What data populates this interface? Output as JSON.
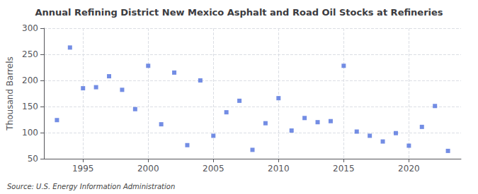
{
  "chart_data": {
    "type": "scatter",
    "title": "Annual Refining District New Mexico Asphalt and Road Oil Stocks at Refineries",
    "ylabel": "Thousand Barrels",
    "source": "Source: U.S. Energy Information Administration",
    "x": [
      1993,
      1994,
      1995,
      1996,
      1997,
      1998,
      1999,
      2000,
      2001,
      2002,
      2003,
      2004,
      2005,
      2006,
      2007,
      2008,
      2009,
      2010,
      2011,
      2012,
      2013,
      2014,
      2015,
      2016,
      2017,
      2018,
      2019,
      2020,
      2021,
      2022,
      2023
    ],
    "values": [
      124,
      263,
      185,
      187,
      208,
      182,
      145,
      228,
      116,
      215,
      76,
      200,
      94,
      139,
      161,
      67,
      118,
      166,
      104,
      128,
      120,
      122,
      228,
      102,
      94,
      83,
      99,
      75,
      111,
      151,
      65
    ],
    "xlim": [
      1992,
      2024
    ],
    "ylim": [
      50,
      300
    ],
    "xticks": [
      1995,
      2000,
      2005,
      2010,
      2015,
      2020
    ],
    "yticks": [
      50,
      100,
      150,
      200,
      250,
      300
    ],
    "marker": "square",
    "grid": true
  }
}
